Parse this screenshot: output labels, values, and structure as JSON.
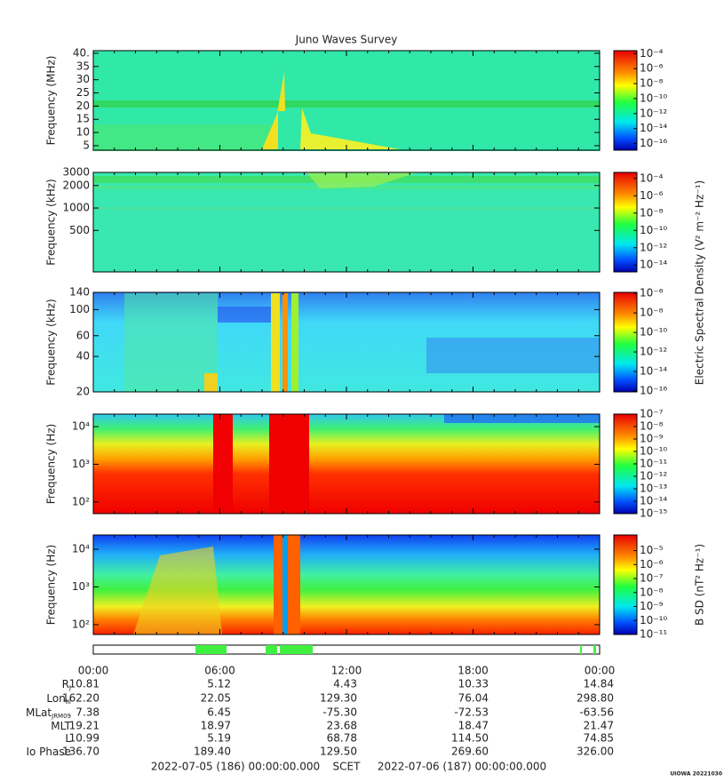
{
  "title": "Juno Waves Survey",
  "xticks": [
    "00:00",
    "06:00",
    "12:00",
    "18:00",
    "00:00"
  ],
  "chart_data": [
    {
      "type": "spectrogram",
      "ylabel": "Frequency (MHz)",
      "yscale": "linear",
      "ylim": [
        3.3,
        41
      ],
      "yticks": [
        5,
        10,
        15,
        20,
        25,
        30,
        35,
        {
          "value": 40,
          "label": "40."
        }
      ],
      "colorbar": {
        "scale": "log",
        "lim": [
          1.3e-17,
          0.00025
        ],
        "ticks": [
          {
            "value": 0.0001,
            "label": "10⁻⁴"
          },
          {
            "value": 1e-06,
            "label": "10⁻⁶"
          },
          {
            "value": 1e-08,
            "label": "10⁻⁸"
          },
          {
            "value": 1e-10,
            "label": "10⁻¹⁰"
          },
          {
            "value": 1e-12,
            "label": "10⁻¹²"
          },
          {
            "value": 1e-14,
            "label": "10⁻¹⁴"
          },
          {
            "value": 1e-16,
            "label": "10⁻¹⁶"
          }
        ]
      }
    },
    {
      "type": "spectrogram",
      "ylabel": "Frequency (kHz)",
      "yscale": "log",
      "ylim": [
        139,
        3000
      ],
      "yticks": [
        500,
        1000,
        2000,
        3000
      ],
      "colorbar": {
        "scale": "log",
        "lim": [
          1.6e-15,
          0.0005
        ],
        "ticks": [
          {
            "value": 0.0001,
            "label": "10⁻⁴"
          },
          {
            "value": 1e-06,
            "label": "10⁻⁶"
          },
          {
            "value": 1e-08,
            "label": "10⁻⁸"
          },
          {
            "value": 1e-10,
            "label": "10⁻¹⁰"
          },
          {
            "value": 1e-12,
            "label": "10⁻¹²"
          },
          {
            "value": 1e-14,
            "label": "10⁻¹⁴"
          }
        ]
      }
    },
    {
      "type": "spectrogram",
      "ylabel": "Frequency (kHz)",
      "yscale": "log",
      "ylim": [
        20,
        140
      ],
      "yticks": [
        20,
        40,
        60,
        100,
        140
      ],
      "colorbar_label": "Electric Spectral Density (V² m⁻² Hz⁻¹)",
      "colorbar": {
        "scale": "log",
        "lim": [
          8e-17,
          1.3e-06
        ],
        "ticks": [
          {
            "value": 1e-06,
            "label": "10⁻⁶"
          },
          {
            "value": 1e-08,
            "label": "10⁻⁸"
          },
          {
            "value": 1e-10,
            "label": "10⁻¹⁰"
          },
          {
            "value": 1e-12,
            "label": "10⁻¹²"
          },
          {
            "value": 1e-14,
            "label": "10⁻¹⁴"
          },
          {
            "value": 1e-16,
            "label": "10⁻¹⁶"
          }
        ]
      }
    },
    {
      "type": "spectrogram",
      "ylabel": "Frequency (Hz)",
      "yscale": "log",
      "ylim": [
        49,
        21500
      ],
      "yticks": [
        {
          "value": 100,
          "label": "10²"
        },
        {
          "value": 1000,
          "label": "10³"
        },
        {
          "value": 10000,
          "label": "10⁴"
        }
      ],
      "colorbar": {
        "scale": "log",
        "lim": [
          1e-15,
          1e-07
        ],
        "ticks": [
          {
            "value": 1e-07,
            "label": "10⁻⁷"
          },
          {
            "value": 1e-08,
            "label": "10⁻⁸"
          },
          {
            "value": 1e-09,
            "label": "10⁻⁹"
          },
          {
            "value": 1e-10,
            "label": "10⁻¹⁰"
          },
          {
            "value": 1e-11,
            "label": "10⁻¹¹"
          },
          {
            "value": 1e-12,
            "label": "10⁻¹²"
          },
          {
            "value": 1e-13,
            "label": "10⁻¹³"
          },
          {
            "value": 1e-14,
            "label": "10⁻¹⁴"
          },
          {
            "value": 1e-15,
            "label": "10⁻¹⁵"
          }
        ]
      }
    },
    {
      "type": "spectrogram",
      "ylabel": "Frequency (Hz)",
      "yscale": "log",
      "ylim": [
        55,
        23800
      ],
      "yticks": [
        {
          "value": 100,
          "label": "10²"
        },
        {
          "value": 1000,
          "label": "10³"
        },
        {
          "value": 10000,
          "label": "10⁴"
        }
      ],
      "colorbar_label": "B SD (nT² Hz⁻¹)",
      "colorbar": {
        "scale": "log",
        "lim": [
          1e-11,
          0.00013
        ],
        "ticks": [
          {
            "value": 1e-05,
            "label": "10⁻⁵"
          },
          {
            "value": 1e-06,
            "label": "10⁻⁶"
          },
          {
            "value": 1e-07,
            "label": "10⁻⁷"
          },
          {
            "value": 1e-08,
            "label": "10⁻⁸"
          },
          {
            "value": 1e-09,
            "label": "10⁻⁹"
          },
          {
            "value": 1e-10,
            "label": "10⁻¹⁰"
          },
          {
            "value": 1e-11,
            "label": "10⁻¹¹"
          }
        ]
      }
    }
  ],
  "ephemeris": [
    {
      "label": "R",
      "sub": "J",
      "values": [
        "10.81",
        "5.12",
        "4.43",
        "10.33",
        "14.84"
      ]
    },
    {
      "label": "Lon",
      "sub": "III",
      "values": [
        "162.20",
        "22.05",
        "129.30",
        "76.04",
        "298.80"
      ]
    },
    {
      "label": "MLat",
      "sub": "JRM09",
      "values": [
        "7.38",
        "6.45",
        "-75.30",
        "-72.53",
        "-63.56"
      ]
    },
    {
      "label": "MLT",
      "values": [
        "19.21",
        "18.97",
        "23.68",
        "18.47",
        "21.47"
      ]
    },
    {
      "label": "L",
      "values": [
        "10.99",
        "5.19",
        "68.78",
        "114.50",
        "74.85"
      ]
    },
    {
      "label": "Io Phase",
      "values": [
        "136.70",
        "189.40",
        "129.50",
        "269.60",
        "326.00"
      ]
    }
  ],
  "footer": {
    "start": "2022-07-05 (186) 00:00:00.000",
    "scale": "SCET",
    "end": "2022-07-06 (187) 00:00:00.000",
    "stamp": "UIOWA 20221030"
  }
}
